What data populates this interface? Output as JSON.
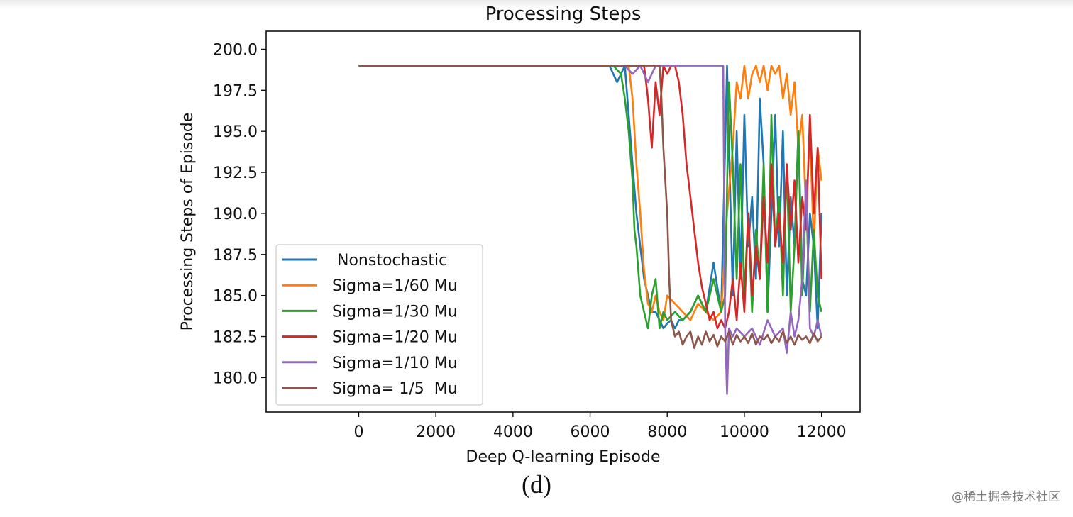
{
  "chart_data": {
    "type": "line",
    "title": "Processing Steps",
    "xlabel": "Deep Q-learning Episode",
    "ylabel": "Processing Steps of Episode",
    "xlim": [
      -2400,
      13000
    ],
    "ylim": [
      177.9,
      201.1
    ],
    "xticks": [
      0,
      2000,
      4000,
      6000,
      8000,
      10000,
      12000
    ],
    "xtick_labels": [
      "0",
      "2000",
      "4000",
      "6000",
      "8000",
      "10000",
      "12000"
    ],
    "yticks": [
      180.0,
      182.5,
      185.0,
      187.5,
      190.0,
      192.5,
      195.0,
      197.5,
      200.0
    ],
    "ytick_labels": [
      "180.0",
      "182.5",
      "185.0",
      "187.5",
      "190.0",
      "192.5",
      "195.0",
      "197.5",
      "200.0"
    ],
    "grid": false,
    "legend_position": "lower-left",
    "series": [
      {
        "name": " Nonstochastic",
        "color": "#1f77b4",
        "x": [
          0,
          6500,
          6700,
          6900,
          7000,
          7100,
          7200,
          7300,
          7400,
          7500,
          7600,
          7700,
          7800,
          7900,
          8000,
          8100,
          8200,
          8300,
          8400,
          8600,
          8800,
          9000,
          9200,
          9400,
          9550,
          9700,
          9800,
          9900,
          10000,
          10100,
          10200,
          10300,
          10400,
          10500,
          10600,
          10700,
          10800,
          10900,
          11000,
          11100,
          11200,
          11300,
          11400,
          11500,
          11600,
          11700,
          11800,
          11900,
          12000
        ],
        "y": [
          199,
          199,
          198,
          199,
          196,
          193,
          190,
          188,
          186,
          185,
          184,
          184,
          183.5,
          183,
          183.3,
          183.5,
          183,
          183.5,
          183.5,
          184,
          185,
          184,
          187,
          184,
          199,
          185,
          195,
          186,
          196,
          188,
          191,
          186,
          197,
          193,
          184,
          190,
          196,
          188,
          195,
          185,
          191,
          188,
          195,
          186,
          185,
          190,
          188,
          183,
          190
        ]
      },
      {
        "name": "Sigma=1/60 Mu",
        "color": "#ff7f0e",
        "x": [
          0,
          7000,
          7100,
          7200,
          7300,
          7400,
          7500,
          7600,
          7700,
          7800,
          7900,
          8000,
          8200,
          8400,
          8600,
          8800,
          9000,
          9200,
          9400,
          9550,
          9700,
          9800,
          9900,
          10000,
          10100,
          10200,
          10300,
          10400,
          10500,
          10600,
          10700,
          10800,
          10900,
          11000,
          11100,
          11200,
          11300,
          11400,
          11500,
          11600,
          11700,
          11800,
          11900,
          12000
        ],
        "y": [
          199,
          199,
          197,
          193,
          190,
          186.5,
          184.5,
          184,
          185,
          184,
          183.5,
          185,
          184.5,
          184,
          183.5,
          184.5,
          184,
          183.5,
          184,
          190,
          194,
          198,
          197,
          199,
          197,
          198.5,
          199,
          198,
          199,
          197.5,
          199,
          198.5,
          199,
          197,
          198.5,
          196,
          198,
          194,
          196,
          190,
          195,
          188,
          194,
          192
        ]
      },
      {
        "name": "Sigma=1/30 Mu",
        "color": "#2ca02c",
        "x": [
          0,
          6600,
          6800,
          6900,
          7000,
          7100,
          7150,
          7200,
          7300,
          7400,
          7500,
          7600,
          7700,
          7800,
          7900,
          8000,
          8200,
          8400,
          8600,
          8800,
          9000,
          9200,
          9400,
          9500,
          9600,
          9700,
          9800,
          9900,
          10000,
          10100,
          10200,
          10300,
          10400,
          10500,
          10600,
          10700,
          10800,
          10900,
          11000,
          11100,
          11200,
          11300,
          11400,
          11500,
          11600,
          11700,
          11800,
          11900,
          12000
        ],
        "y": [
          199,
          199,
          198.5,
          197,
          195,
          192,
          189,
          188,
          185,
          184,
          183,
          185,
          186,
          183,
          184,
          183.5,
          184,
          183.5,
          184,
          185,
          184,
          186,
          184,
          185,
          198,
          193,
          186,
          193,
          185,
          190,
          184,
          189,
          186,
          193,
          184,
          196,
          188,
          191,
          185,
          193,
          184,
          188,
          195,
          185,
          191,
          184,
          189,
          185,
          184
        ]
      },
      {
        "name": "Sigma=1/20 Mu",
        "color": "#d62728",
        "x": [
          0,
          7400,
          7500,
          7600,
          7700,
          7800,
          7900,
          8000,
          8100,
          8200,
          8300,
          8400,
          8500,
          8600,
          8700,
          8800,
          8900,
          9000,
          9100,
          9200,
          9300,
          9400,
          9500,
          9600,
          9700,
          9800,
          9900,
          10000,
          10100,
          10200,
          10300,
          10400,
          10500,
          10600,
          10700,
          10800,
          10900,
          11000,
          11100,
          11200,
          11300,
          11400,
          11500,
          11600,
          11700,
          11800,
          11900,
          12000
        ],
        "y": [
          199,
          199,
          197,
          194,
          198,
          196,
          199,
          198.5,
          199,
          199,
          198,
          196,
          193,
          191,
          189,
          187,
          185.5,
          184.5,
          183.5,
          184,
          183,
          183.5,
          183,
          184,
          186,
          183.5,
          187,
          184,
          190,
          185,
          188,
          186,
          191,
          187,
          193,
          188,
          190,
          187,
          193,
          189,
          192,
          187,
          191,
          189,
          196,
          190,
          194,
          186
        ]
      },
      {
        "name": "Sigma=1/10 Mu",
        "color": "#9467bd",
        "x": [
          0,
          6700,
          6900,
          7100,
          7300,
          7500,
          7700,
          7800,
          8000,
          8200,
          8400,
          8600,
          8800,
          9000,
          9200,
          9350,
          9450,
          9500,
          9550,
          9600,
          9700,
          9800,
          10000,
          10200,
          10400,
          10600,
          10800,
          11000,
          11100,
          11200,
          11300,
          11400,
          11500,
          11600,
          11700,
          11800,
          11900,
          12000
        ],
        "y": [
          199,
          199,
          199,
          198.5,
          199,
          198,
          199,
          199,
          199,
          199,
          199,
          199,
          199,
          199,
          199,
          199,
          199,
          183,
          179,
          183,
          182.5,
          183,
          182.5,
          183,
          182,
          183.5,
          182.5,
          183,
          181.5,
          184,
          182.5,
          183.5,
          186,
          192,
          183,
          182.5,
          183.5,
          182.5
        ]
      },
      {
        "name": "Sigma= 1/5  Mu",
        "color": "#8c564b",
        "x": [
          0,
          7800,
          7850,
          7900,
          8000,
          8050,
          8100,
          8150,
          8200,
          8300,
          8400,
          8500,
          8600,
          8700,
          8800,
          8900,
          9000,
          9100,
          9200,
          9300,
          9400,
          9500,
          9600,
          9700,
          9800,
          9900,
          10000,
          10100,
          10200,
          10300,
          10400,
          10500,
          10600,
          10700,
          10800,
          10900,
          11000,
          11100,
          11200,
          11300,
          11400,
          11500,
          11600,
          11700,
          11800,
          11900,
          12000
        ],
        "y": [
          199,
          199,
          197,
          194,
          190,
          186,
          183.5,
          183,
          182.5,
          182.8,
          182,
          182.5,
          182.8,
          181.8,
          182.5,
          182,
          182.8,
          182.2,
          182.6,
          181.9,
          182.5,
          182.2,
          182.8,
          182,
          182.6,
          182.2,
          182.5,
          182.1,
          182.7,
          182,
          182.5,
          182.3,
          182.6,
          182.1,
          182.5,
          182.2,
          182.8,
          182.1,
          182.5,
          182,
          182.6,
          182.3,
          182.5,
          182.1,
          182.7,
          182.2,
          182.5
        ]
      }
    ]
  },
  "figure": {
    "caption": "(d)",
    "watermark": "@稀土掘金技术社区"
  }
}
